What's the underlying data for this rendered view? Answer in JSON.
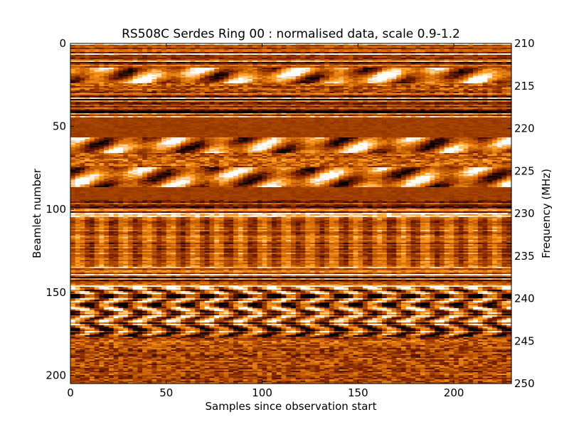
{
  "chart_data": {
    "type": "heatmap",
    "title": "RS508C Serdes Ring 00 : normalised data, scale 0.9-1.2",
    "xlabel": "Samples since observation start",
    "ylabel": "Beamlet number",
    "y2label": "Frequency (MHz)",
    "xlim": [
      0,
      230
    ],
    "ylim": [
      205,
      0
    ],
    "y2lim": [
      250,
      210
    ],
    "x_ticks": [
      "0",
      "50",
      "100",
      "150",
      "200"
    ],
    "x_tick_values": [
      0,
      50,
      100,
      150,
      200
    ],
    "y_ticks": [
      "0",
      "50",
      "100",
      "150",
      "200"
    ],
    "y_tick_values": [
      0,
      50,
      100,
      150,
      200
    ],
    "y2_ticks": [
      "210",
      "215",
      "220",
      "225",
      "230",
      "235",
      "240",
      "245",
      "250"
    ],
    "y2_tick_values": [
      210,
      215,
      220,
      225,
      230,
      235,
      240,
      245,
      250
    ],
    "color_scale": [
      0.9,
      1.2
    ],
    "colormap": [
      "#000000",
      "#7a2000",
      "#c15a00",
      "#ff9a1e",
      "#ffffff"
    ],
    "bands": [
      {
        "y": [
          0,
          8
        ],
        "mean": 0.45,
        "variation": "stripes"
      },
      {
        "y": [
          8,
          14
        ],
        "mean": 0.5,
        "variation": "stripes"
      },
      {
        "y": [
          14,
          24
        ],
        "mean": 0.6,
        "variation": "blobs"
      },
      {
        "y": [
          24,
          30
        ],
        "mean": 0.45,
        "variation": "noise"
      },
      {
        "y": [
          30,
          44
        ],
        "mean": 0.4,
        "variation": "stripes"
      },
      {
        "y": [
          44,
          56
        ],
        "mean": 0.38,
        "variation": "flat"
      },
      {
        "y": [
          56,
          66
        ],
        "mean": 0.55,
        "variation": "blobs"
      },
      {
        "y": [
          66,
          74
        ],
        "mean": 0.5,
        "variation": "noise"
      },
      {
        "y": [
          74,
          86
        ],
        "mean": 0.55,
        "variation": "blobs"
      },
      {
        "y": [
          86,
          94
        ],
        "mean": 0.38,
        "variation": "flat"
      },
      {
        "y": [
          94,
          104
        ],
        "mean": 0.5,
        "variation": "stripes"
      },
      {
        "y": [
          104,
          134
        ],
        "mean": 0.48,
        "variation": "streaks"
      },
      {
        "y": [
          134,
          146
        ],
        "mean": 0.5,
        "variation": "stripes"
      },
      {
        "y": [
          146,
          176
        ],
        "mean": 0.5,
        "variation": "rings"
      },
      {
        "y": [
          176,
          205
        ],
        "mean": 0.45,
        "variation": "noise"
      }
    ]
  }
}
